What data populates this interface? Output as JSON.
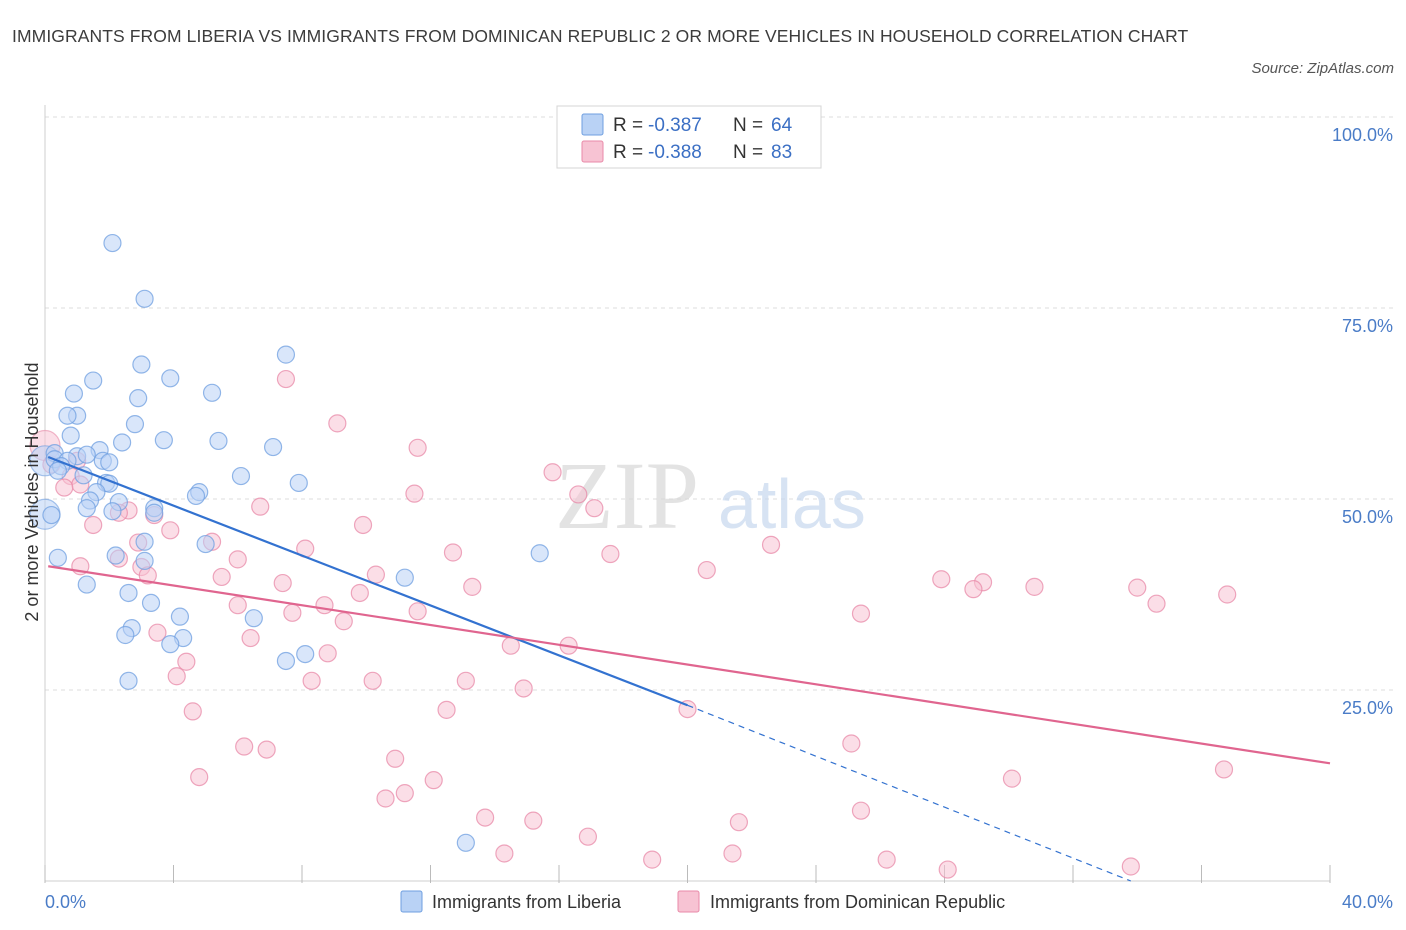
{
  "title": "IMMIGRANTS FROM LIBERIA VS IMMIGRANTS FROM DOMINICAN REPUBLIC 2 OR MORE VEHICLES IN HOUSEHOLD CORRELATION CHART",
  "source": "Source: ZipAtlas.com",
  "watermark": {
    "zip": "ZIP",
    "atlas": "atlas"
  },
  "colors": {
    "blue": "#6f9fe0",
    "blue_fill": "#b9d2f5",
    "blue_line": "#3372d0",
    "pink": "#e88aa8",
    "pink_fill": "#f7c3d3",
    "pink_line": "#e0658f",
    "tick": "#4a7cc7",
    "grid": "#dcdcdc"
  },
  "legend": {
    "rows": [
      {
        "r_label": "R =",
        "r_value": "-0.387",
        "n_label": "N =",
        "n_value": "64",
        "series": "blue"
      },
      {
        "r_label": "R =",
        "r_value": "-0.388",
        "n_label": "N =",
        "n_value": "83",
        "series": "pink"
      }
    ]
  },
  "chart_data": {
    "type": "scatter",
    "title": "IMMIGRANTS FROM LIBERIA VS IMMIGRANTS FROM DOMINICAN REPUBLIC 2 OR MORE VEHICLES IN HOUSEHOLD CORRELATION CHART",
    "xlabel": "",
    "ylabel": "2 or more Vehicles in Household",
    "xlim": [
      0,
      40
    ],
    "ylim": [
      0,
      100
    ],
    "x_tick_labels": [
      "0.0%",
      "40.0%"
    ],
    "y_ticks": [
      25,
      50,
      75,
      100
    ],
    "y_tick_labels": [
      "25.0%",
      "50.0%",
      "75.0%",
      "100.0%"
    ],
    "grid": true,
    "legend_position": "top-center",
    "series": [
      {
        "name": "Immigrants from Liberia",
        "color": "blue",
        "trend": {
          "x_start": 0.1,
          "y_start": 55.5,
          "x_solid_end": 20.0,
          "y_solid_end": 23.0,
          "x_dash_end": 33.8,
          "y_dash_end": 0
        },
        "points": [
          [
            2.1,
            83.5
          ],
          [
            3.1,
            76.2
          ],
          [
            7.5,
            68.9
          ],
          [
            3.0,
            67.6
          ],
          [
            3.9,
            65.8
          ],
          [
            1.5,
            65.5
          ],
          [
            5.2,
            63.9
          ],
          [
            0.9,
            63.8
          ],
          [
            2.9,
            63.2
          ],
          [
            1.0,
            60.9
          ],
          [
            0.7,
            60.9
          ],
          [
            2.8,
            59.8
          ],
          [
            0.8,
            58.3
          ],
          [
            2.4,
            57.4
          ],
          [
            3.7,
            57.7
          ],
          [
            5.4,
            57.6
          ],
          [
            7.1,
            56.8
          ],
          [
            1.7,
            56.4
          ],
          [
            0.3,
            56.0
          ],
          [
            1.0,
            55.6
          ],
          [
            1.3,
            55.8
          ],
          [
            0.3,
            55.2
          ],
          [
            0.7,
            55.0
          ],
          [
            1.8,
            55.0
          ],
          [
            2.0,
            54.8
          ],
          [
            0.5,
            54.3
          ],
          [
            0.4,
            53.7
          ],
          [
            1.2,
            53.1
          ],
          [
            6.1,
            53.0
          ],
          [
            7.9,
            52.1
          ],
          [
            1.9,
            52.1
          ],
          [
            2.0,
            52.0
          ],
          [
            1.6,
            50.9
          ],
          [
            4.8,
            50.9
          ],
          [
            4.7,
            50.4
          ],
          [
            1.4,
            49.8
          ],
          [
            2.3,
            49.6
          ],
          [
            1.3,
            48.8
          ],
          [
            2.1,
            48.4
          ],
          [
            3.4,
            48.8
          ],
          [
            3.4,
            48.2
          ],
          [
            0.2,
            47.9
          ],
          [
            3.1,
            44.4
          ],
          [
            5.0,
            44.1
          ],
          [
            15.4,
            42.9
          ],
          [
            2.2,
            42.6
          ],
          [
            0.4,
            42.3
          ],
          [
            3.1,
            41.9
          ],
          [
            11.2,
            39.7
          ],
          [
            1.3,
            38.8
          ],
          [
            2.6,
            37.7
          ],
          [
            3.3,
            36.4
          ],
          [
            4.2,
            34.6
          ],
          [
            6.5,
            34.4
          ],
          [
            2.7,
            33.1
          ],
          [
            2.5,
            32.2
          ],
          [
            4.3,
            31.8
          ],
          [
            3.9,
            31.0
          ],
          [
            8.1,
            29.7
          ],
          [
            7.5,
            28.8
          ],
          [
            2.6,
            26.2
          ],
          [
            13.1,
            5.0
          ]
        ],
        "large_points": [
          [
            0.0,
            48.0
          ],
          [
            0.0,
            55.0
          ]
        ]
      },
      {
        "name": "Immigrants from Dominican Republic",
        "color": "pink",
        "trend": {
          "x_start": 0.1,
          "y_start": 41.2,
          "x_end": 40.0,
          "y_end": 15.4
        },
        "points": [
          [
            7.5,
            65.7
          ],
          [
            9.1,
            59.9
          ],
          [
            11.6,
            56.7
          ],
          [
            1.0,
            55.0
          ],
          [
            0.2,
            54.5
          ],
          [
            15.8,
            53.5
          ],
          [
            0.8,
            53.0
          ],
          [
            1.1,
            51.9
          ],
          [
            0.6,
            51.5
          ],
          [
            11.5,
            50.7
          ],
          [
            16.6,
            50.6
          ],
          [
            6.7,
            49.0
          ],
          [
            17.1,
            48.8
          ],
          [
            2.6,
            48.5
          ],
          [
            3.4,
            47.9
          ],
          [
            2.3,
            48.2
          ],
          [
            9.9,
            46.6
          ],
          [
            1.5,
            46.6
          ],
          [
            3.9,
            45.9
          ],
          [
            2.9,
            44.3
          ],
          [
            5.2,
            44.4
          ],
          [
            22.6,
            44.0
          ],
          [
            8.1,
            43.5
          ],
          [
            12.7,
            43.0
          ],
          [
            17.6,
            42.8
          ],
          [
            2.3,
            42.2
          ],
          [
            3.0,
            41.1
          ],
          [
            6.0,
            42.1
          ],
          [
            1.1,
            41.2
          ],
          [
            20.6,
            40.7
          ],
          [
            10.3,
            40.1
          ],
          [
            3.2,
            40.0
          ],
          [
            5.5,
            39.8
          ],
          [
            27.9,
            39.5
          ],
          [
            29.2,
            39.1
          ],
          [
            7.4,
            39.0
          ],
          [
            13.3,
            38.5
          ],
          [
            30.8,
            38.5
          ],
          [
            34.0,
            38.4
          ],
          [
            28.9,
            38.2
          ],
          [
            36.8,
            37.5
          ],
          [
            9.8,
            37.7
          ],
          [
            8.7,
            36.1
          ],
          [
            6.0,
            36.1
          ],
          [
            34.6,
            36.3
          ],
          [
            11.6,
            35.3
          ],
          [
            7.7,
            35.1
          ],
          [
            25.4,
            35.0
          ],
          [
            9.3,
            34.0
          ],
          [
            3.5,
            32.5
          ],
          [
            6.4,
            31.8
          ],
          [
            14.5,
            30.8
          ],
          [
            16.3,
            30.8
          ],
          [
            8.8,
            29.8
          ],
          [
            4.4,
            28.7
          ],
          [
            4.1,
            26.8
          ],
          [
            8.3,
            26.2
          ],
          [
            10.2,
            26.2
          ],
          [
            13.1,
            26.2
          ],
          [
            14.9,
            25.2
          ],
          [
            4.6,
            22.2
          ],
          [
            12.5,
            22.4
          ],
          [
            20.0,
            22.5
          ],
          [
            25.1,
            18.0
          ],
          [
            6.2,
            17.6
          ],
          [
            6.9,
            17.2
          ],
          [
            10.9,
            16.0
          ],
          [
            36.7,
            14.6
          ],
          [
            4.8,
            13.6
          ],
          [
            12.1,
            13.2
          ],
          [
            30.1,
            13.4
          ],
          [
            11.2,
            11.5
          ],
          [
            10.6,
            10.8
          ],
          [
            25.4,
            9.2
          ],
          [
            13.7,
            8.3
          ],
          [
            15.2,
            7.9
          ],
          [
            21.6,
            7.7
          ],
          [
            16.9,
            5.8
          ],
          [
            14.3,
            3.6
          ],
          [
            21.4,
            3.6
          ],
          [
            18.9,
            2.8
          ],
          [
            26.2,
            2.8
          ],
          [
            28.1,
            1.5
          ],
          [
            33.8,
            1.9
          ]
        ],
        "large_points": [
          [
            0.0,
            57.0
          ]
        ]
      }
    ]
  },
  "bottom_legend": [
    {
      "label": "Immigrants from Liberia",
      "series": "blue"
    },
    {
      "label": "Immigrants from Dominican Republic",
      "series": "pink"
    }
  ]
}
